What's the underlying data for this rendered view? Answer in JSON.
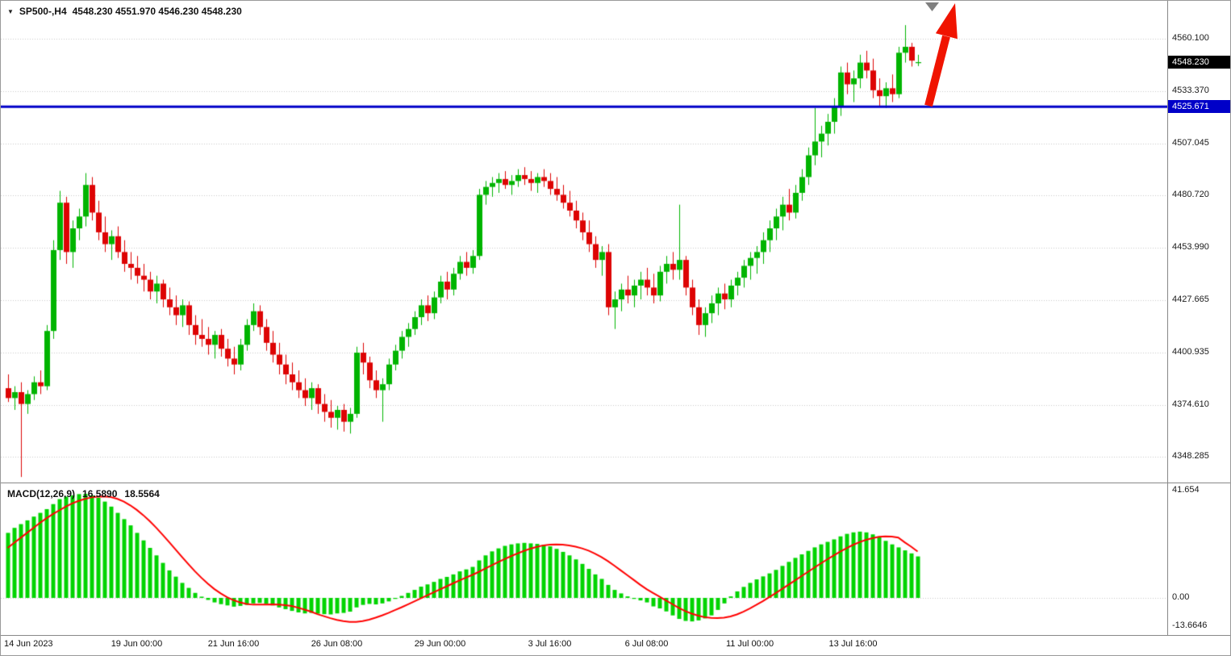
{
  "header": {
    "symbol_timeframe": "SP500-,H4",
    "ohlc_text": "4548.230 4551.970 4546.230 4548.230"
  },
  "price_axis": {
    "current_tag": "4548.230",
    "current_tag_bg": "#000000",
    "hline_tag": "4525.671",
    "hline_tag_bg": "#0000c8"
  },
  "annotations": {
    "arrow_color": "#f01400",
    "marker_color": "#808080",
    "description": "thick red up arrow above last candles, gray down-triangle marker at top"
  },
  "chart_data": [
    {
      "type": "candlestick",
      "symbol": "SP500-",
      "timeframe": "H4",
      "current": {
        "open": 4548.23,
        "high": 4551.97,
        "low": 4546.23,
        "close": 4548.23
      },
      "hline": {
        "price": 4525.671,
        "color": "#0000c8"
      },
      "ylim": [
        4338,
        4567
      ],
      "ytick_labels": [
        "4560.100",
        "4533.370",
        "4507.045",
        "4480.720",
        "4453.990",
        "4427.665",
        "4400.935",
        "4374.610",
        "4348.285"
      ],
      "xticks": [
        {
          "label": "14 Jun 2023",
          "bar": 0
        },
        {
          "label": "19 Jun 00:00",
          "bar": 20
        },
        {
          "label": "21 Jun 16:00",
          "bar": 35
        },
        {
          "label": "26 Jun 08:00",
          "bar": 51
        },
        {
          "label": "29 Jun 00:00",
          "bar": 67
        },
        {
          "label": "3 Jul 16:00",
          "bar": 84
        },
        {
          "label": "6 Jul 08:00",
          "bar": 99
        },
        {
          "label": "11 Jul 00:00",
          "bar": 115
        },
        {
          "label": "13 Jul 16:00",
          "bar": 131
        }
      ],
      "colors": {
        "up": "#00b400",
        "down": "#dd0404",
        "grid": "#c8c8c8"
      },
      "candles": [
        [
          4383,
          4390,
          4376,
          4378
        ],
        [
          4378,
          4384,
          4372,
          4381
        ],
        [
          4381,
          4386,
          4338,
          4375
        ],
        [
          4375,
          4382,
          4370,
          4380
        ],
        [
          4380,
          4389,
          4377,
          4386
        ],
        [
          4386,
          4392,
          4380,
          4384
        ],
        [
          4384,
          4415,
          4382,
          4412
        ],
        [
          4412,
          4458,
          4408,
          4453
        ],
        [
          4453,
          4483,
          4448,
          4477
        ],
        [
          4477,
          4480,
          4446,
          4452
        ],
        [
          4452,
          4468,
          4444,
          4464
        ],
        [
          4464,
          4474,
          4458,
          4470
        ],
        [
          4470,
          4492,
          4465,
          4486
        ],
        [
          4486,
          4490,
          4468,
          4472
        ],
        [
          4472,
          4478,
          4458,
          4462
        ],
        [
          4462,
          4470,
          4452,
          4456
        ],
        [
          4456,
          4463,
          4448,
          4460
        ],
        [
          4460,
          4465,
          4449,
          4452
        ],
        [
          4452,
          4458,
          4442,
          4446
        ],
        [
          4446,
          4452,
          4438,
          4444
        ],
        [
          4444,
          4450,
          4436,
          4440
        ],
        [
          4440,
          4446,
          4432,
          4438
        ],
        [
          4438,
          4442,
          4428,
          4432
        ],
        [
          4432,
          4440,
          4426,
          4436
        ],
        [
          4436,
          4438,
          4424,
          4428
        ],
        [
          4428,
          4434,
          4420,
          4424
        ],
        [
          4424,
          4430,
          4415,
          4420
        ],
        [
          4420,
          4428,
          4414,
          4425
        ],
        [
          4425,
          4427,
          4410,
          4415
        ],
        [
          4415,
          4420,
          4405,
          4410
        ],
        [
          4410,
          4418,
          4404,
          4408
        ],
        [
          4408,
          4414,
          4400,
          4405
        ],
        [
          4405,
          4412,
          4398,
          4410
        ],
        [
          4410,
          4413,
          4399,
          4403
        ],
        [
          4403,
          4408,
          4394,
          4398
        ],
        [
          4398,
          4404,
          4390,
          4395
        ],
        [
          4395,
          4408,
          4392,
          4405
        ],
        [
          4405,
          4418,
          4402,
          4415
        ],
        [
          4415,
          4426,
          4412,
          4422
        ],
        [
          4422,
          4425,
          4410,
          4414
        ],
        [
          4414,
          4418,
          4402,
          4406
        ],
        [
          4406,
          4412,
          4396,
          4400
        ],
        [
          4400,
          4406,
          4390,
          4395
        ],
        [
          4395,
          4400,
          4385,
          4390
        ],
        [
          4390,
          4396,
          4382,
          4386
        ],
        [
          4386,
          4392,
          4378,
          4382
        ],
        [
          4382,
          4388,
          4374,
          4378
        ],
        [
          4378,
          4386,
          4372,
          4383
        ],
        [
          4383,
          4385,
          4370,
          4375
        ],
        [
          4375,
          4380,
          4366,
          4371
        ],
        [
          4371,
          4377,
          4363,
          4368
        ],
        [
          4368,
          4374,
          4362,
          4372
        ],
        [
          4372,
          4375,
          4361,
          4366
        ],
        [
          4366,
          4373,
          4360,
          4370
        ],
        [
          4370,
          4404,
          4368,
          4401
        ],
        [
          4401,
          4406,
          4390,
          4396
        ],
        [
          4396,
          4399,
          4383,
          4387
        ],
        [
          4387,
          4392,
          4378,
          4382
        ],
        [
          4382,
          4388,
          4366,
          4385
        ],
        [
          4385,
          4398,
          4382,
          4395
        ],
        [
          4395,
          4405,
          4392,
          4402
        ],
        [
          4402,
          4412,
          4398,
          4409
        ],
        [
          4409,
          4416,
          4404,
          4413
        ],
        [
          4413,
          4422,
          4410,
          4419
        ],
        [
          4419,
          4428,
          4415,
          4425
        ],
        [
          4425,
          4430,
          4417,
          4421
        ],
        [
          4421,
          4432,
          4418,
          4429
        ],
        [
          4429,
          4440,
          4426,
          4437
        ],
        [
          4437,
          4442,
          4428,
          4433
        ],
        [
          4433,
          4444,
          4430,
          4441
        ],
        [
          4441,
          4450,
          4438,
          4447
        ],
        [
          4447,
          4452,
          4440,
          4444
        ],
        [
          4444,
          4453,
          4441,
          4450
        ],
        [
          4450,
          4484,
          4448,
          4481
        ],
        [
          4481,
          4488,
          4476,
          4485
        ],
        [
          4485,
          4490,
          4480,
          4487
        ],
        [
          4487,
          4492,
          4482,
          4489
        ],
        [
          4489,
          4493,
          4484,
          4486
        ],
        [
          4486,
          4491,
          4481,
          4488
        ],
        [
          4488,
          4494,
          4485,
          4491
        ],
        [
          4491,
          4495,
          4486,
          4489
        ],
        [
          4489,
          4493,
          4483,
          4487
        ],
        [
          4487,
          4492,
          4482,
          4490
        ],
        [
          4490,
          4494,
          4485,
          4488
        ],
        [
          4488,
          4492,
          4481,
          4484
        ],
        [
          4484,
          4490,
          4478,
          4481
        ],
        [
          4481,
          4486,
          4474,
          4477
        ],
        [
          4477,
          4483,
          4470,
          4473
        ],
        [
          4473,
          4478,
          4464,
          4468
        ],
        [
          4468,
          4472,
          4458,
          4462
        ],
        [
          4462,
          4468,
          4452,
          4456
        ],
        [
          4456,
          4460,
          4444,
          4448
        ],
        [
          4448,
          4455,
          4440,
          4452
        ],
        [
          4452,
          4456,
          4420,
          4424
        ],
        [
          4424,
          4432,
          4413,
          4428
        ],
        [
          4428,
          4436,
          4422,
          4433
        ],
        [
          4433,
          4440,
          4426,
          4430
        ],
        [
          4430,
          4438,
          4424,
          4435
        ],
        [
          4435,
          4442,
          4428,
          4438
        ],
        [
          4438,
          4444,
          4430,
          4434
        ],
        [
          4434,
          4441,
          4426,
          4430
        ],
        [
          4430,
          4445,
          4427,
          4442
        ],
        [
          4442,
          4450,
          4436,
          4446
        ],
        [
          4446,
          4452,
          4438,
          4443
        ],
        [
          4443,
          4476,
          4438,
          4448
        ],
        [
          4448,
          4450,
          4430,
          4434
        ],
        [
          4434,
          4438,
          4420,
          4424
        ],
        [
          4424,
          4428,
          4410,
          4415
        ],
        [
          4415,
          4424,
          4409,
          4421
        ],
        [
          4421,
          4430,
          4416,
          4426
        ],
        [
          4426,
          4434,
          4420,
          4431
        ],
        [
          4431,
          4436,
          4423,
          4428
        ],
        [
          4428,
          4438,
          4424,
          4435
        ],
        [
          4435,
          4442,
          4430,
          4439
        ],
        [
          4439,
          4448,
          4434,
          4445
        ],
        [
          4445,
          4452,
          4438,
          4449
        ],
        [
          4449,
          4455,
          4441,
          4452
        ],
        [
          4452,
          4462,
          4446,
          4458
        ],
        [
          4458,
          4468,
          4452,
          4464
        ],
        [
          4464,
          4474,
          4458,
          4470
        ],
        [
          4470,
          4480,
          4463,
          4476
        ],
        [
          4476,
          4484,
          4468,
          4472
        ],
        [
          4472,
          4486,
          4469,
          4482
        ],
        [
          4482,
          4494,
          4478,
          4490
        ],
        [
          4490,
          4505,
          4486,
          4501
        ],
        [
          4501,
          4525,
          4496,
          4508
        ],
        [
          4508,
          4516,
          4500,
          4512
        ],
        [
          4512,
          4522,
          4506,
          4518
        ],
        [
          4518,
          4530,
          4512,
          4526
        ],
        [
          4526,
          4546,
          4521,
          4543
        ],
        [
          4543,
          4548,
          4532,
          4537
        ],
        [
          4537,
          4544,
          4528,
          4540
        ],
        [
          4540,
          4552,
          4535,
          4548
        ],
        [
          4548,
          4554,
          4540,
          4544
        ],
        [
          4544,
          4550,
          4530,
          4534
        ],
        [
          4534,
          4540,
          4526,
          4531
        ],
        [
          4531,
          4538,
          4525,
          4535
        ],
        [
          4535,
          4542,
          4528,
          4532
        ],
        [
          4532,
          4556,
          4530,
          4553
        ],
        [
          4553,
          4567,
          4548,
          4556
        ],
        [
          4556,
          4558,
          4546,
          4549
        ],
        [
          4548.23,
          4551.97,
          4546.23,
          4548.23
        ]
      ]
    },
    {
      "type": "bar+line",
      "title": "MACD(12,26,9)",
      "macd_value": "16.5890",
      "signal_value": "18.5564",
      "axis_labels": {
        "max": "41.654",
        "zero": "0.00",
        "min": "-13.6646"
      },
      "ylim": [
        -13.6646,
        41.654
      ],
      "colors": {
        "histogram": "#00d400",
        "signal": "#ff0000",
        "grid": "#c8c8c8"
      },
      "histogram": [
        26,
        28,
        29.5,
        31,
        32.5,
        34,
        35.5,
        37.5,
        39.5,
        40.5,
        41,
        41.5,
        41.6,
        41,
        40,
        38.5,
        36.5,
        34,
        31.5,
        29,
        26,
        23,
        20,
        17,
        14,
        11,
        8.5,
        6,
        4,
        2,
        0.5,
        -0.8,
        -1.8,
        -2.5,
        -3,
        -3.5,
        -3.2,
        -2.8,
        -2.2,
        -2,
        -2.4,
        -3,
        -3.8,
        -4.5,
        -5.2,
        -5.8,
        -6.2,
        -6,
        -6.3,
        -6.5,
        -6.6,
        -6.2,
        -6,
        -5.5,
        -3.8,
        -2.8,
        -2.4,
        -2.6,
        -2.2,
        -1.4,
        -0.4,
        0.8,
        2,
        3.2,
        4.5,
        5.4,
        6.4,
        7.6,
        8.4,
        9.4,
        10.6,
        11.4,
        12.4,
        15,
        17,
        18.6,
        19.8,
        20.8,
        21.4,
        21.8,
        22,
        21.8,
        21.6,
        21.2,
        20.6,
        19.6,
        18.4,
        17,
        15.4,
        13.6,
        11.6,
        9.4,
        7.6,
        5.2,
        3.2,
        1.8,
        0.6,
        -0.4,
        -1,
        -1.8,
        -3.4,
        -4.2,
        -5.4,
        -7,
        -8.4,
        -9.2,
        -9.4,
        -9,
        -8.2,
        -7,
        -4.8,
        -2.2,
        0.6,
        2.6,
        4.4,
        6,
        7.4,
        8.6,
        9.8,
        11.2,
        12.8,
        14.4,
        16,
        17.4,
        18.8,
        20.2,
        21.4,
        22.4,
        23.4,
        24.6,
        25.6,
        26.2,
        26.5,
        26.2,
        25.4,
        24.2,
        22.8,
        21.4,
        20.2,
        19,
        17.8,
        16.589
      ],
      "signal": [
        20,
        22,
        24,
        26,
        28,
        30,
        31.8,
        33.5,
        35,
        36.5,
        37.8,
        38.8,
        39.6,
        40.2,
        40.5,
        40.6,
        40.3,
        39.6,
        38.5,
        37,
        35.2,
        33.1,
        30.7,
        28.1,
        25.3,
        22.4,
        19.4,
        16.4,
        13.5,
        10.7,
        8.1,
        5.7,
        3.6,
        1.8,
        0.3,
        -0.9,
        -1.8,
        -2.4,
        -2.7,
        -2.7,
        -2.7,
        -2.6,
        -2.7,
        -2.9,
        -3.2,
        -3.9,
        -4.7,
        -5.5,
        -6.5,
        -7.3,
        -8.1,
        -8.8,
        -9.3,
        -9.6,
        -9.6,
        -9.3,
        -8.7,
        -7.9,
        -7,
        -6,
        -4.9,
        -3.8,
        -2.6,
        -1.4,
        -0.2,
        1,
        2.2,
        3.4,
        4.6,
        5.8,
        7,
        8.1,
        9.2,
        10.4,
        11.7,
        13,
        14.3,
        15.5,
        16.7,
        17.8,
        18.8,
        19.7,
        20.4,
        21,
        21.3,
        21.4,
        21.3,
        21,
        20.5,
        19.8,
        18.9,
        17.7,
        16.3,
        14.7,
        12.9,
        11,
        9.1,
        7.2,
        5.3,
        3.5,
        2,
        0.5,
        -1,
        -2.5,
        -4,
        -5.3,
        -6.3,
        -7.1,
        -7.7,
        -8,
        -8.1,
        -7.9,
        -7.4,
        -6.6,
        -5.5,
        -4.2,
        -2.8,
        -1.3,
        0.3,
        1.9,
        3.6,
        5.3,
        7,
        8.7,
        10.4,
        12.1,
        13.8,
        15.4,
        17,
        18.5,
        19.9,
        21.2,
        22.3,
        23.2,
        23.9,
        24.4,
        24.6,
        24.5,
        24.1,
        22.2,
        20.5,
        18.5564
      ]
    }
  ]
}
